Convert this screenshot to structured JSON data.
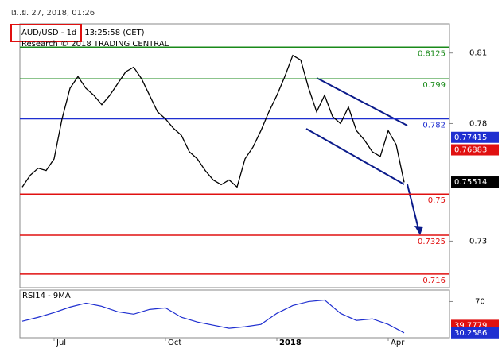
{
  "chart_data": {
    "type": "line",
    "timestamp": "เม.ย. 27, 2018, 01:26",
    "title": "AUD/USD - 1d - 13:25:58 (CET)",
    "subtitle": "Research © 2018 TRADING CENTRAL",
    "categories": [
      null,
      null,
      null,
      null,
      "Jul",
      null,
      null,
      null,
      null,
      null,
      null,
      null,
      null,
      null,
      null,
      null,
      null,
      null,
      "Oct",
      null,
      null,
      null,
      null,
      null,
      null,
      null,
      null,
      null,
      null,
      null,
      null,
      null,
      "2018",
      null,
      null,
      null,
      null,
      null,
      null,
      null,
      null,
      null,
      null,
      null,
      null,
      null,
      "Apr",
      null,
      null
    ],
    "series": [
      {
        "color": "#000000",
        "values": [
          0.753,
          0.758,
          0.761,
          0.76,
          0.765,
          0.782,
          0.795,
          0.8,
          0.795,
          0.792,
          0.788,
          0.792,
          0.797,
          0.802,
          0.804,
          0.799,
          0.792,
          0.785,
          0.782,
          0.778,
          0.775,
          0.768,
          0.765,
          0.76,
          0.756,
          0.754,
          0.756,
          0.753,
          0.765,
          0.77,
          0.777,
          0.785,
          0.792,
          0.8,
          0.809,
          0.807,
          0.795,
          0.785,
          0.792,
          0.783,
          0.78,
          0.787,
          0.777,
          0.773,
          0.768,
          0.766,
          0.777,
          0.771,
          0.755
        ]
      }
    ],
    "ylim": [
      0.7102,
      0.8224
    ],
    "yticks": [
      0.81,
      0.78,
      0.73
    ],
    "levels": [
      {
        "value": 0.8125,
        "color": "#1a8a1a"
      },
      {
        "value": 0.799,
        "color": "#1a8a1a"
      },
      {
        "value": 0.782,
        "color": "#1f2fd0"
      },
      {
        "value": 0.75,
        "color": "#e01010"
      },
      {
        "value": 0.7325,
        "color": "#e01010"
      },
      {
        "value": 0.716,
        "color": "#e01010"
      }
    ],
    "markers": [
      {
        "value": 0.77415,
        "color": "#1f2fd0"
      },
      {
        "value": 0.76883,
        "color": "#e01010"
      },
      {
        "value": 0.75514,
        "color": "#000000"
      }
    ],
    "rsi": {
      "label": "RSI14 - 9MA",
      "color": "#1f2fd0",
      "values": [
        45,
        50,
        56,
        63,
        68,
        64,
        57,
        54,
        60,
        62,
        50,
        44,
        40,
        36,
        38,
        41,
        55,
        65,
        70,
        72,
        55,
        46,
        48,
        41,
        30.2586
      ],
      "ylim": [
        24,
        84.6
      ],
      "yticks": [
        70
      ],
      "markers": [
        {
          "value": 39.7779,
          "color": "#e01010"
        },
        {
          "value": 30.2586,
          "color": "#1f2fd0"
        }
      ]
    }
  }
}
